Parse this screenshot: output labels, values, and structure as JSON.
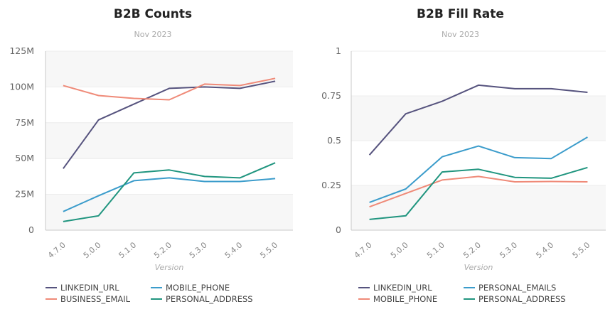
{
  "chart_data": [
    {
      "type": "line",
      "title": "B2B Counts",
      "subtitle": "Nov 2023",
      "xlabel": "Version",
      "ylabel": "",
      "categories": [
        "4.7.0",
        "5.0.0",
        "5.1.0",
        "5.2.0",
        "5.3.0",
        "5.4.0",
        "5.5.0"
      ],
      "ylim": [
        0,
        125000000
      ],
      "yticks": [
        0,
        25000000,
        50000000,
        75000000,
        100000000,
        125000000
      ],
      "ytick_labels": [
        "0",
        "25M",
        "50M",
        "75M",
        "100M",
        "125M"
      ],
      "grid": true,
      "legend_position": "bottom",
      "series": [
        {
          "name": "LINKEDIN_URL",
          "color": "#56537e",
          "values": [
            43000000,
            77000000,
            88000000,
            99000000,
            100000000,
            99000000,
            104000000
          ]
        },
        {
          "name": "BUSINESS_EMAIL",
          "color": "#ef8a78",
          "values": [
            101000000,
            94000000,
            92000000,
            91000000,
            102000000,
            101000000,
            106000000
          ]
        },
        {
          "name": "MOBILE_PHONE",
          "color": "#3b9ccb",
          "values": [
            13000000,
            24000000,
            34500000,
            36500000,
            34000000,
            34000000,
            36000000
          ]
        },
        {
          "name": "PERSONAL_ADDRESS",
          "color": "#20957f",
          "values": [
            6000000,
            10000000,
            40000000,
            42000000,
            37500000,
            36500000,
            47000000
          ]
        }
      ]
    },
    {
      "type": "line",
      "title": "B2B Fill Rate",
      "subtitle": "Nov 2023",
      "xlabel": "Version",
      "ylabel": "",
      "categories": [
        "4.7.0",
        "5.0.0",
        "5.1.0",
        "5.2.0",
        "5.3.0",
        "5.4.0",
        "5.5.0"
      ],
      "ylim": [
        0,
        1
      ],
      "yticks": [
        0,
        0.25,
        0.5,
        0.75,
        1
      ],
      "ytick_labels": [
        "0",
        "0.25",
        "0.5",
        "0.75",
        "1"
      ],
      "grid": true,
      "legend_position": "bottom",
      "series": [
        {
          "name": "LINKEDIN_URL",
          "color": "#56537e",
          "values": [
            0.42,
            0.65,
            0.72,
            0.81,
            0.79,
            0.79,
            0.77
          ]
        },
        {
          "name": "MOBILE_PHONE",
          "color": "#ef8a78",
          "values": [
            0.13,
            0.205,
            0.28,
            0.3,
            0.27,
            0.272,
            0.27
          ]
        },
        {
          "name": "PERSONAL_EMAILS",
          "color": "#3b9ccb",
          "values": [
            0.155,
            0.23,
            0.41,
            0.47,
            0.405,
            0.4,
            0.52
          ]
        },
        {
          "name": "PERSONAL_ADDRESS",
          "color": "#20957f",
          "values": [
            0.06,
            0.08,
            0.325,
            0.34,
            0.295,
            0.29,
            0.35
          ]
        }
      ]
    }
  ],
  "style": {
    "band_color": "#f7f7f7",
    "grid_color": "#ececec",
    "axis_color": "#c8c8c8",
    "tick_label_color": "#666666",
    "xlabel_color": "#aaaaaa"
  }
}
